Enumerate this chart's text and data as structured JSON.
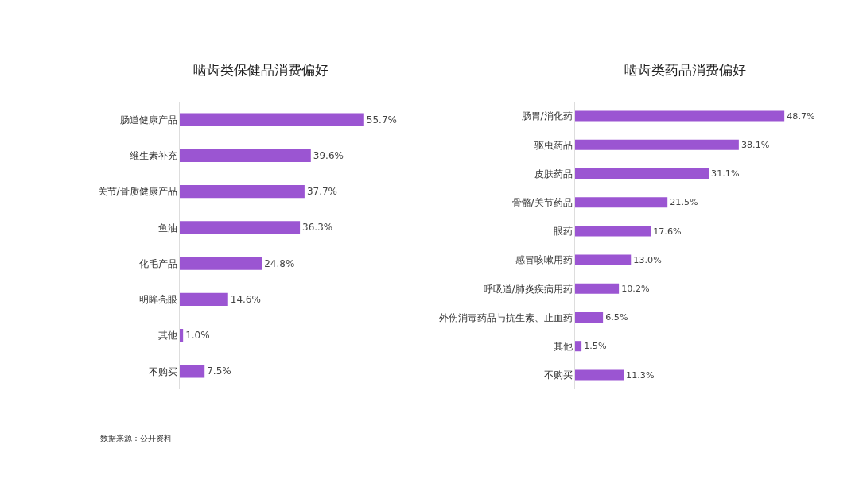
{
  "chart_data": [
    {
      "type": "bar",
      "orientation": "horizontal",
      "title": "啮齿类保健品消费偏好",
      "categories": [
        "肠道健康产品",
        "维生素补充",
        "关节/骨质健康产品",
        "鱼油",
        "化毛产品",
        "明眸亮眼",
        "其他",
        "不购买"
      ],
      "values": [
        55.7,
        39.6,
        37.7,
        36.3,
        24.8,
        14.6,
        1.0,
        7.5
      ],
      "value_labels": [
        "55.7%",
        "39.6%",
        "37.7%",
        "36.3%",
        "24.8%",
        "14.6%",
        "1.0%",
        "7.5%"
      ],
      "color": "#9b55d2",
      "annotations": [
        "数据来源：公开资料"
      ]
    },
    {
      "type": "bar",
      "orientation": "horizontal",
      "title": "啮齿类药品消费偏好",
      "categories": [
        "肠胃/消化药",
        "驱虫药品",
        "皮肤药品",
        "骨骼/关节药品",
        "眼药",
        "感冒咳嗽用药",
        "呼吸道/肺炎疾病用药",
        "外伤消毒药品与抗生素、止血药",
        "其他",
        "不购买"
      ],
      "values": [
        48.7,
        38.1,
        31.1,
        21.5,
        17.6,
        13.0,
        10.2,
        6.5,
        1.5,
        11.3
      ],
      "value_labels": [
        "48.7%",
        "38.1%",
        "31.1%",
        "21.5%",
        "17.6%",
        "13.0%",
        "10.2%",
        "6.5%",
        "1.5%",
        "11.3%"
      ],
      "color": "#9b55d2"
    }
  ]
}
